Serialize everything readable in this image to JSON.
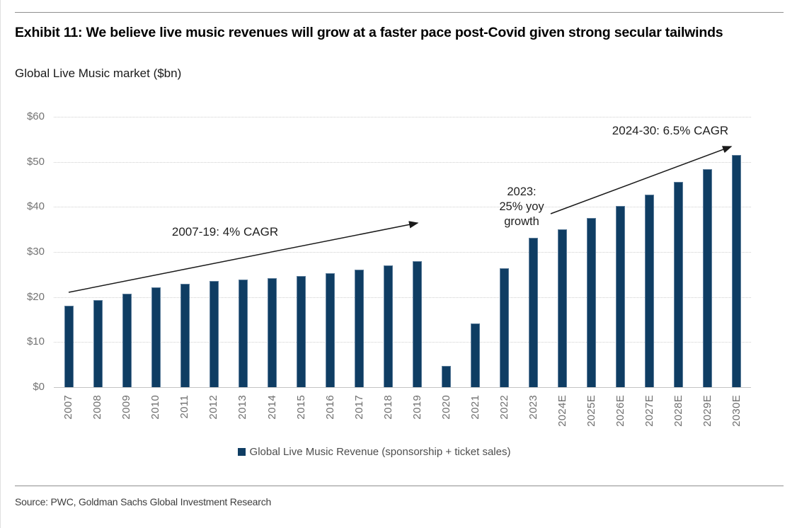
{
  "header": {
    "title": "Exhibit 11: We believe live music revenues will grow at a faster pace post-Covid given strong secular tailwinds",
    "subtitle": "Global Live Music market ($bn)"
  },
  "annotations": {
    "cagr_2007_19": "2007-19: 4% CAGR",
    "growth_2023": "2023:\n25% yoy\ngrowth",
    "cagr_2024_30": "2024-30: 6.5% CAGR"
  },
  "legend": {
    "label": "Global Live Music Revenue (sponsorship + ticket sales)",
    "marker_color": "#0f3d63"
  },
  "footer": {
    "source": "Source: PWC, Goldman Sachs Global Investment Research"
  },
  "chart_data": {
    "type": "bar",
    "title": "Global Live Music market ($bn)",
    "categories": [
      "2007",
      "2008",
      "2009",
      "2010",
      "2011",
      "2012",
      "2013",
      "2014",
      "2015",
      "2016",
      "2017",
      "2018",
      "2019",
      "2020",
      "2021",
      "2022",
      "2023",
      "2024E",
      "2025E",
      "2026E",
      "2027E",
      "2028E",
      "2029E",
      "2030E"
    ],
    "series": [
      {
        "name": "Global Live Music Revenue (sponsorship + ticket sales)",
        "values": [
          18.1,
          19.4,
          20.8,
          22.2,
          23.0,
          23.6,
          23.8,
          24.2,
          24.7,
          25.3,
          26.0,
          27.0,
          28.0,
          4.7,
          14.2,
          26.4,
          33.1,
          35.0,
          37.6,
          40.2,
          42.7,
          45.6,
          48.4,
          51.5
        ]
      }
    ],
    "xlabel": "",
    "ylabel": "$bn",
    "ytick_labels": [
      "$0",
      "$10",
      "$20",
      "$30",
      "$40",
      "$50",
      "$60"
    ],
    "ylim": [
      0,
      60
    ],
    "grid": "horizontal-dotted",
    "legend_position": "bottom",
    "bar_color": "#0f3d63",
    "annotations": [
      "2007-19: 4% CAGR",
      "2023: 25% yoy growth",
      "2024-30: 6.5% CAGR"
    ]
  }
}
